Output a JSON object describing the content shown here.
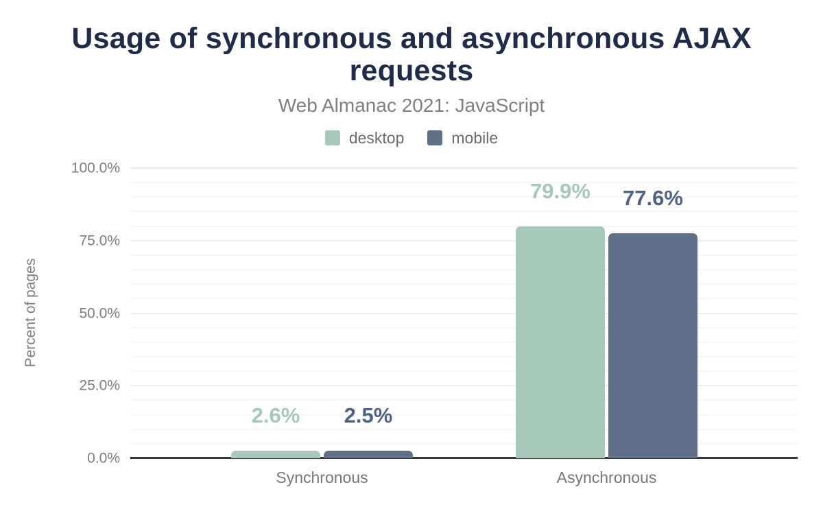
{
  "chart_data": {
    "type": "bar",
    "title": "Usage of synchronous and asynchronous AJAX requests",
    "subtitle": "Web Almanac 2021: JavaScript",
    "categories": [
      "Synchronous",
      "Asynchronous"
    ],
    "series": [
      {
        "name": "desktop",
        "values": [
          2.6,
          79.9
        ],
        "value_labels": [
          "2.6%",
          "79.9%"
        ],
        "color": "#a6c9b9",
        "label_color": "#a5c9b8"
      },
      {
        "name": "mobile",
        "values": [
          2.5,
          77.6
        ],
        "value_labels": [
          "2.5%",
          "77.6%"
        ],
        "color": "#5f7088",
        "label_color": "#4e6384"
      }
    ],
    "xlabel": "",
    "ylabel": "Percent of pages",
    "ylim": [
      0,
      100
    ],
    "yticks": [
      0,
      25,
      50,
      75,
      100
    ],
    "ytick_labels": [
      "0.0%",
      "25.0%",
      "50.0%",
      "75.0%",
      "100.0%"
    ],
    "minor_grid_step": 5,
    "grid": "horizontal",
    "legend_position": "top"
  },
  "colors": {
    "title_text": "#1e2b49",
    "subtitle_text": "#7e7e85",
    "axis_text": "#7c7c84",
    "category_text": "#75757d",
    "legend_text": "#6b6b72",
    "axis_line": "#32323a",
    "grid_major": "#ececec",
    "grid_minor": "#f6f6f6",
    "background": "#ffffff"
  }
}
